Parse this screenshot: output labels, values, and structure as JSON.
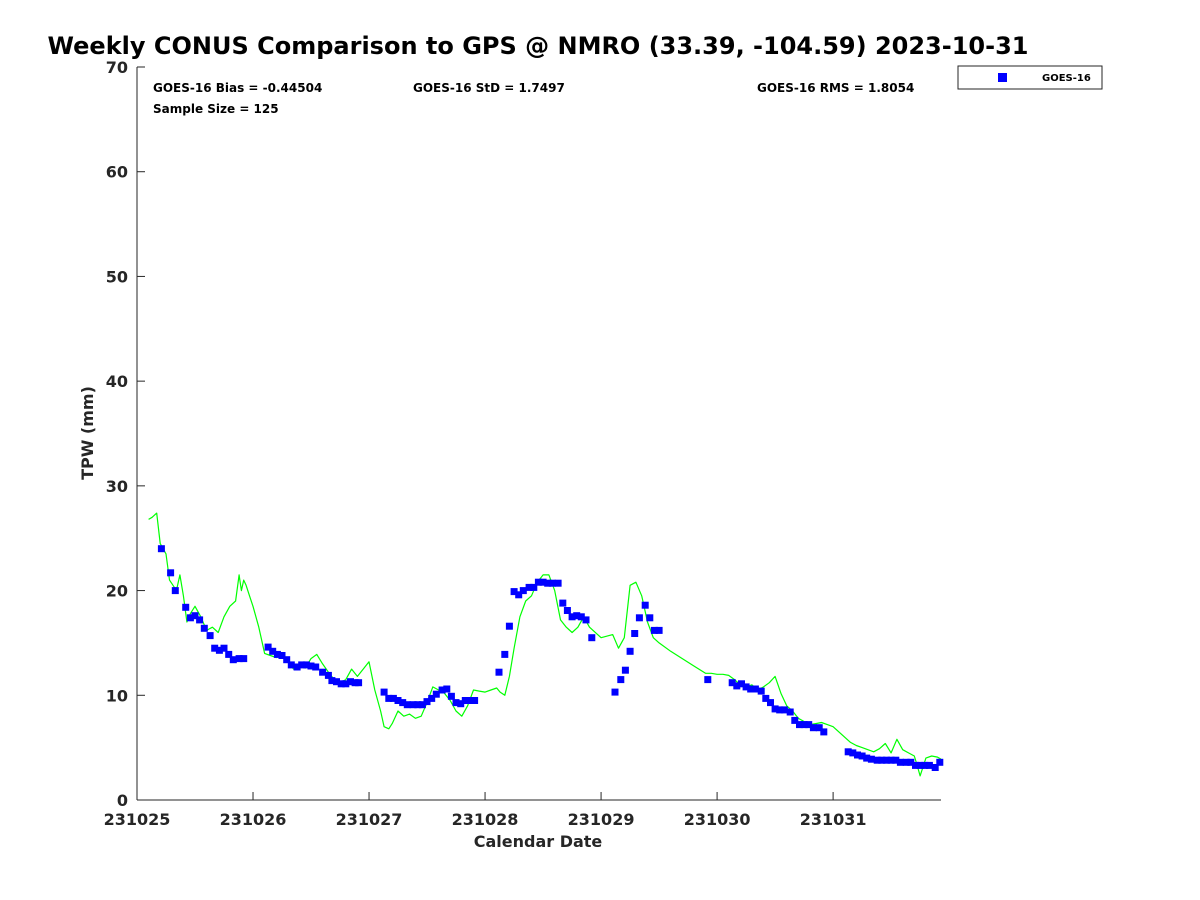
{
  "chart_data": {
    "type": "scatter",
    "title": "Weekly CONUS Comparison to GPS @ NMRO (33.39, -104.59) 2023-10-31",
    "xlabel": "Calendar Date",
    "ylabel": "TPW (mm)",
    "xlim": [
      231025,
      231031.93
    ],
    "ylim": [
      0,
      70
    ],
    "x_ticks": [
      "231025",
      "231026",
      "231027",
      "231028",
      "231029",
      "231030",
      "231031"
    ],
    "y_ticks": [
      "0",
      "10",
      "20",
      "30",
      "40",
      "50",
      "60",
      "70"
    ],
    "grid": false,
    "legend_position": "top-right",
    "stats": {
      "bias": "GOES-16 Bias = -0.44504",
      "std": "GOES-16 StD = 1.7497",
      "rms": "GOES-16 RMS = 1.8054",
      "sample": "Sample Size = 125"
    },
    "colors": {
      "goes": "#0000ff",
      "gps": "#00ff00"
    },
    "series": [
      {
        "name": "GOES-16",
        "kind": "scatter",
        "x": [
          231025.21,
          231025.29,
          231025.33,
          231025.42,
          231025.46,
          231025.5,
          231025.54,
          231025.58,
          231025.63,
          231025.67,
          231025.71,
          231025.75,
          231025.79,
          231025.83,
          231025.88,
          231025.92,
          231026.13,
          231026.17,
          231026.21,
          231026.25,
          231026.29,
          231026.33,
          231026.38,
          231026.42,
          231026.46,
          231026.5,
          231026.54,
          231026.6,
          231026.65,
          231026.68,
          231026.72,
          231026.76,
          231026.8,
          231026.84,
          231026.88,
          231026.91,
          231027.13,
          231027.17,
          231027.21,
          231027.25,
          231027.29,
          231027.33,
          231027.38,
          231027.42,
          231027.46,
          231027.5,
          231027.54,
          231027.58,
          231027.63,
          231027.67,
          231027.71,
          231027.75,
          231027.79,
          231027.83,
          231027.87,
          231027.91,
          231028.12,
          231028.17,
          231028.21,
          231028.25,
          231028.29,
          231028.33,
          231028.38,
          231028.42,
          231028.46,
          231028.5,
          231028.54,
          231028.58,
          231028.63,
          231028.67,
          231028.71,
          231028.75,
          231028.79,
          231028.83,
          231028.87,
          231028.92,
          231029.12,
          231029.17,
          231029.21,
          231029.25,
          231029.29,
          231029.33,
          231029.38,
          231029.42,
          231029.46,
          231029.5,
          231029.92,
          231030.13,
          231030.17,
          231030.21,
          231030.25,
          231030.29,
          231030.33,
          231030.38,
          231030.42,
          231030.46,
          231030.5,
          231030.54,
          231030.58,
          231030.63,
          231030.67,
          231030.71,
          231030.75,
          231030.79,
          231030.83,
          231030.88,
          231030.92,
          231031.13,
          231031.17,
          231031.21,
          231031.25,
          231031.29,
          231031.33,
          231031.38,
          231031.42,
          231031.46,
          231031.5,
          231031.54,
          231031.58,
          231031.63,
          231031.67,
          231031.71,
          231031.75,
          231031.79,
          231031.83,
          231031.88,
          231031.92
        ],
        "y": [
          24.0,
          21.7,
          20.0,
          18.4,
          17.4,
          17.6,
          17.2,
          16.4,
          15.7,
          14.5,
          14.3,
          14.5,
          13.9,
          13.4,
          13.5,
          13.5,
          14.6,
          14.2,
          13.9,
          13.8,
          13.4,
          12.9,
          12.7,
          12.9,
          12.9,
          12.8,
          12.7,
          12.2,
          11.9,
          11.4,
          11.3,
          11.1,
          11.1,
          11.3,
          11.2,
          11.2,
          10.3,
          9.7,
          9.7,
          9.5,
          9.3,
          9.1,
          9.1,
          9.1,
          9.1,
          9.4,
          9.7,
          10.1,
          10.5,
          10.6,
          9.9,
          9.3,
          9.2,
          9.5,
          9.5,
          9.5,
          12.2,
          13.9,
          16.6,
          19.9,
          19.6,
          20.0,
          20.3,
          20.3,
          20.8,
          20.8,
          20.7,
          20.7,
          20.7,
          18.8,
          18.1,
          17.5,
          17.6,
          17.5,
          17.2,
          15.5,
          10.3,
          11.5,
          12.4,
          14.2,
          15.9,
          17.4,
          18.6,
          17.4,
          16.2,
          16.2,
          11.5,
          11.2,
          10.9,
          11.1,
          10.8,
          10.6,
          10.6,
          10.4,
          9.7,
          9.3,
          8.7,
          8.6,
          8.6,
          8.4,
          7.6,
          7.2,
          7.2,
          7.2,
          6.9,
          6.9,
          6.5,
          4.6,
          4.5,
          4.3,
          4.2,
          4.0,
          3.9,
          3.8,
          3.8,
          3.8,
          3.8,
          3.8,
          3.6,
          3.6,
          3.6,
          3.3,
          3.3,
          3.3,
          3.3,
          3.1,
          3.6
        ]
      },
      {
        "kind": "line",
        "x": [
          231025.1,
          231025.13,
          231025.17,
          231025.2,
          231025.25,
          231025.28,
          231025.31,
          231025.34,
          231025.37,
          231025.4,
          231025.43,
          231025.46,
          231025.5,
          231025.55,
          231025.6,
          231025.65,
          231025.7,
          231025.75,
          231025.8,
          231025.85,
          231025.88,
          231025.9,
          231025.92,
          231025.94,
          231025.97,
          231026.0,
          231026.05,
          231026.1,
          231026.15,
          231026.2,
          231026.25,
          231026.3,
          231026.35,
          231026.4,
          231026.45,
          231026.5,
          231026.55,
          231026.6,
          231026.65,
          231026.7,
          231026.75,
          231026.8,
          231026.85,
          231026.9,
          231026.95,
          231027.0,
          231027.05,
          231027.1,
          231027.13,
          231027.17,
          231027.2,
          231027.25,
          231027.3,
          231027.35,
          231027.4,
          231027.45,
          231027.5,
          231027.55,
          231027.6,
          231027.65,
          231027.7,
          231027.75,
          231027.8,
          231027.85,
          231027.9,
          231027.95,
          231028.0,
          231028.05,
          231028.1,
          231028.13,
          231028.17,
          231028.21,
          231028.25,
          231028.3,
          231028.35,
          231028.4,
          231028.45,
          231028.5,
          231028.55,
          231028.6,
          231028.65,
          231028.7,
          231028.75,
          231028.8,
          231028.85,
          231028.9,
          231029.0,
          231029.1,
          231029.15,
          231029.2,
          231029.25,
          231029.3,
          231029.35,
          231029.4,
          231029.45,
          231029.5,
          231029.6,
          231029.7,
          231029.8,
          231029.9,
          231029.95,
          231030.0,
          231030.05,
          231030.1,
          231030.15,
          231030.2,
          231030.25,
          231030.3,
          231030.35,
          231030.4,
          231030.45,
          231030.5,
          231030.55,
          231030.6,
          231030.65,
          231030.7,
          231030.75,
          231030.8,
          231030.85,
          231030.9,
          231030.95,
          231031.0,
          231031.05,
          231031.1,
          231031.15,
          231031.2,
          231031.25,
          231031.3,
          231031.35,
          231031.4,
          231031.45,
          231031.5,
          231031.55,
          231031.6,
          231031.65,
          231031.7,
          231031.72,
          231031.75,
          231031.8,
          231031.85,
          231031.9,
          231031.93
        ],
        "y": [
          26.8,
          27.0,
          27.4,
          24.5,
          23.5,
          21.0,
          20.5,
          20.0,
          21.5,
          19.5,
          17.0,
          17.8,
          18.5,
          17.5,
          16.2,
          16.5,
          16.0,
          17.5,
          18.5,
          19.0,
          21.5,
          20.0,
          21.0,
          20.5,
          19.5,
          18.5,
          16.5,
          14.0,
          13.8,
          13.6,
          13.8,
          13.2,
          12.5,
          12.8,
          12.6,
          13.5,
          13.9,
          13.0,
          12.2,
          11.5,
          11.2,
          11.5,
          12.5,
          11.8,
          12.5,
          13.2,
          10.5,
          8.5,
          7.0,
          6.8,
          7.3,
          8.5,
          8.0,
          8.2,
          7.8,
          8.0,
          9.3,
          10.8,
          10.5,
          10.2,
          9.5,
          8.5,
          8.0,
          9.0,
          10.5,
          10.4,
          10.3,
          10.5,
          10.7,
          10.3,
          10.0,
          11.8,
          14.5,
          17.5,
          19.0,
          19.5,
          20.8,
          21.5,
          21.5,
          20.0,
          17.2,
          16.5,
          16.0,
          16.5,
          17.5,
          16.5,
          15.5,
          15.8,
          14.5,
          15.5,
          20.5,
          20.8,
          19.5,
          17.0,
          15.5,
          15.0,
          14.2,
          13.5,
          12.8,
          12.1,
          12.1,
          12.0,
          12.0,
          11.9,
          11.5,
          11.0,
          10.8,
          11.0,
          10.5,
          10.8,
          11.2,
          11.8,
          10.2,
          9.0,
          8.5,
          7.8,
          7.5,
          7.2,
          7.3,
          7.4,
          7.2,
          7.0,
          6.5,
          6.0,
          5.5,
          5.2,
          5.0,
          4.8,
          4.6,
          4.9,
          5.4,
          4.5,
          5.8,
          4.8,
          4.5,
          4.2,
          3.5,
          2.3,
          4.0,
          4.2,
          4.1,
          3.9
        ]
      }
    ]
  }
}
